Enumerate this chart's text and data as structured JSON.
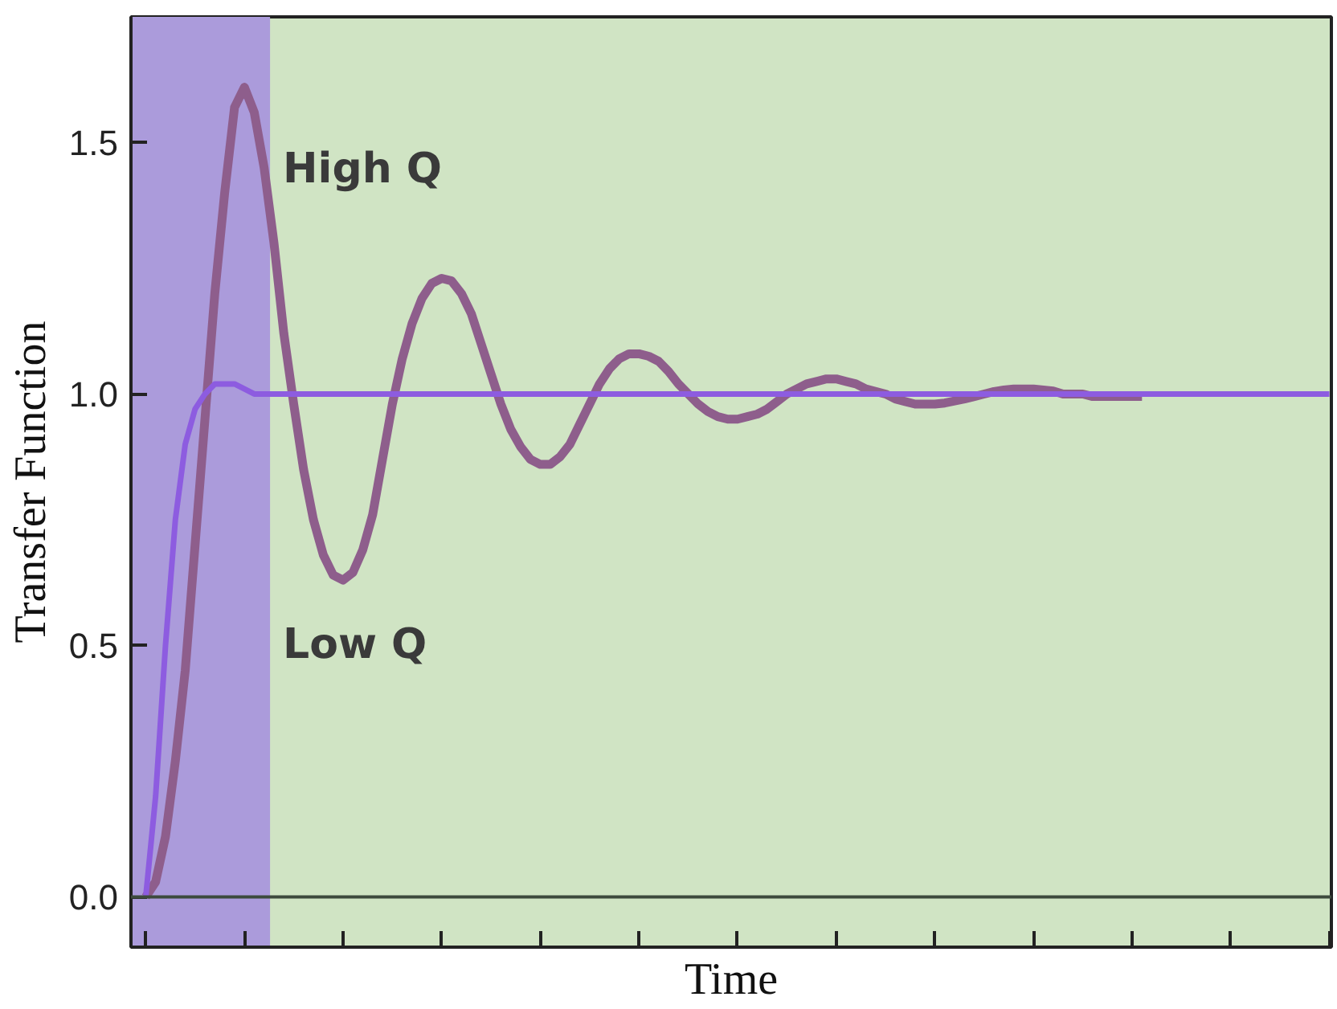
{
  "chart_data": {
    "type": "line",
    "xlabel": "Time",
    "ylabel": "Transfer Function",
    "categories": [
      null,
      null,
      null,
      null,
      null,
      null,
      null,
      null,
      null,
      null,
      null,
      null,
      null,
      null,
      null,
      null,
      null,
      null,
      null,
      null,
      null,
      null,
      null,
      null,
      null,
      null,
      null,
      null,
      null,
      null,
      null,
      null,
      null,
      null,
      null,
      null,
      null,
      null,
      null,
      null,
      null,
      null,
      null,
      null,
      null,
      null,
      null,
      null,
      null,
      null,
      null,
      null,
      null,
      null,
      null,
      null,
      null,
      null,
      null,
      null,
      null,
      null,
      null,
      null,
      null,
      null,
      null,
      null,
      null,
      null,
      null,
      null,
      null,
      null,
      null,
      null,
      null,
      null,
      null,
      null,
      null,
      null,
      null,
      null,
      null,
      null,
      null,
      null,
      null,
      null,
      null,
      null,
      null,
      null,
      null,
      null,
      null,
      null,
      null,
      null,
      null,
      null,
      null,
      null,
      null,
      null,
      null,
      null,
      null,
      null,
      null,
      null,
      null,
      null,
      null,
      null,
      null,
      null,
      null,
      null,
      null
    ],
    "ylim": [
      -0.1,
      1.75
    ],
    "yticks": [
      {
        "value": 0,
        "label": "0.0"
      },
      {
        "value": 0.5,
        "label": "0.5"
      },
      {
        "value": 1,
        "label": "1.0"
      },
      {
        "value": 1.5,
        "label": "1.5"
      }
    ],
    "tick_labels": "y",
    "grid": false,
    "line_style": "solid",
    "series": [
      {
        "color": "#8e5e8c",
        "values": [
          0,
          0.03,
          0.12,
          0.27,
          0.45,
          0.7,
          0.95,
          1.2,
          1.4,
          1.57,
          1.61,
          1.56,
          1.45,
          1.3,
          1.12,
          0.98,
          0.85,
          0.75,
          0.68,
          0.64,
          0.63,
          0.645,
          0.69,
          0.76,
          0.87,
          0.98,
          1.07,
          1.14,
          1.19,
          1.22,
          1.23,
          1.225,
          1.2,
          1.16,
          1.1,
          1.04,
          0.98,
          0.93,
          0.895,
          0.87,
          0.86,
          0.86,
          0.875,
          0.9,
          0.94,
          0.98,
          1.02,
          1.05,
          1.07,
          1.08,
          1.08,
          1.075,
          1.065,
          1.045,
          1.02,
          1.0,
          0.98,
          0.965,
          0.955,
          0.95,
          0.95,
          0.955,
          0.96,
          0.97,
          0.985,
          1.0,
          1.01,
          1.02,
          1.025,
          1.03,
          1.03,
          1.025,
          1.02,
          1.01,
          1.005,
          1.0,
          0.99,
          0.985,
          0.98,
          0.98,
          0.98,
          0.982,
          0.986,
          0.99,
          0.995,
          1.0,
          1.005,
          1.008,
          1.01,
          1.01,
          1.01,
          1.008,
          1.006,
          1.0,
          1.0,
          1.0,
          0.995,
          0.995,
          0.995,
          0.995,
          0.995,
          0.995,
          null,
          null,
          null,
          null,
          null,
          null,
          null,
          null,
          null,
          null,
          null,
          null,
          null,
          null,
          null,
          null,
          null,
          null,
          null
        ]
      },
      {
        "color": "#8d5ce0",
        "values": [
          0,
          0.2,
          0.5,
          0.75,
          0.9,
          0.97,
          1.0,
          1.02,
          1.02,
          1.02,
          1.01,
          1.0,
          1.0,
          1.0,
          1.0,
          1.0,
          1.0,
          1.0,
          1.0,
          1.0,
          1.0,
          1.0,
          1.0,
          1.0,
          1.0,
          1.0,
          1.0,
          1.0,
          1.0,
          1.0,
          1.0,
          1.0,
          1.0,
          1.0,
          1.0,
          1.0,
          1.0,
          1.0,
          1.0,
          1.0,
          1.0,
          1.0,
          1.0,
          1.0,
          1.0,
          1.0,
          1.0,
          1.0,
          1.0,
          1.0,
          1.0,
          1.0,
          1.0,
          1.0,
          1.0,
          1.0,
          1.0,
          1.0,
          1.0,
          1.0,
          1.0,
          1.0,
          1.0,
          1.0,
          1.0,
          1.0,
          1.0,
          1.0,
          1.0,
          1.0,
          1.0,
          1.0,
          1.0,
          1.0,
          1.0,
          1.0,
          1.0,
          1.0,
          1.0,
          1.0,
          1.0,
          1.0,
          1.0,
          1.0,
          1.0,
          1.0,
          1.0,
          1.0,
          1.0,
          1.0,
          1.0,
          1.0,
          1.0,
          1.0,
          1.0,
          1.0,
          1.0,
          1.0,
          1.0,
          1.0,
          1.0,
          1.0,
          1.0,
          1.0,
          1.0,
          1.0,
          1.0,
          1.0,
          1.0,
          1.0,
          1.0,
          1.0,
          1.0,
          1.0,
          1.0,
          1.0,
          1.0,
          1.0,
          1.0,
          1.0,
          1.0
        ]
      }
    ],
    "ref_lines": [
      {
        "axis": "y",
        "value": 0,
        "color": "#3d4a3d"
      }
    ],
    "annotations": [
      "High Q",
      "Low Q"
    ]
  }
}
